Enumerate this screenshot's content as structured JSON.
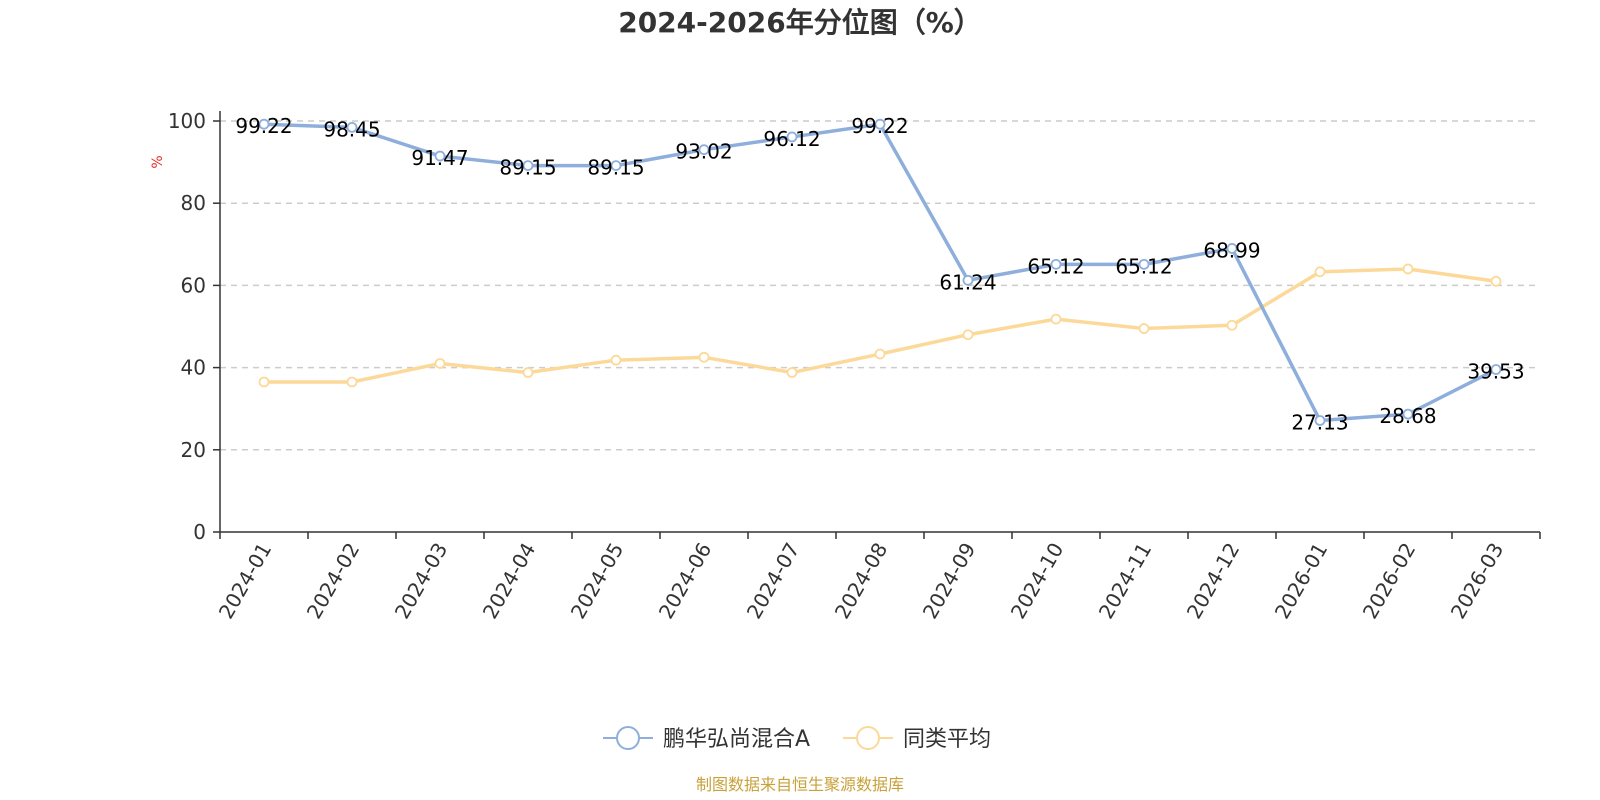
{
  "colors": {
    "series_fund": "#8eaedb",
    "series_avg": "#fcd999",
    "axis": "#333333",
    "grid": "#cccccc",
    "unit_label": "#e8312f",
    "source": "#c8a13a"
  },
  "chart_data": {
    "type": "line",
    "title": "2024-2026年分位图（%）",
    "ylabel": "%",
    "ylim": [
      0,
      100
    ],
    "yticks": [
      0,
      20,
      40,
      60,
      80,
      100
    ],
    "grid": true,
    "legend_position": "bottom-center",
    "categories": [
      "2024-01",
      "2024-02",
      "2024-03",
      "2024-04",
      "2024-05",
      "2024-06",
      "2024-07",
      "2024-08",
      "2024-09",
      "2024-10",
      "2024-11",
      "2024-12",
      "2026-01",
      "2026-02",
      "2026-03"
    ],
    "series": [
      {
        "name": "鹏华弘尚混合A",
        "values": [
          99.22,
          98.45,
          91.47,
          89.15,
          89.15,
          93.02,
          96.12,
          99.22,
          61.24,
          65.12,
          65.12,
          68.99,
          27.13,
          28.68,
          39.53
        ],
        "labels": [
          "99.22",
          "98.45",
          "91.47",
          "89.15",
          "89.15",
          "93.02",
          "96.12",
          "99.22",
          "61.24",
          "65.12",
          "65.12",
          "68.99",
          "27.13",
          "28.68",
          "39.53"
        ]
      },
      {
        "name": "同类平均",
        "values": [
          36.5,
          36.5,
          41.0,
          38.8,
          41.8,
          42.5,
          38.8,
          43.3,
          48.0,
          51.8,
          49.5,
          50.3,
          63.3,
          64.0,
          61.0
        ]
      }
    ]
  },
  "source": "制图数据来自恒生聚源数据库"
}
